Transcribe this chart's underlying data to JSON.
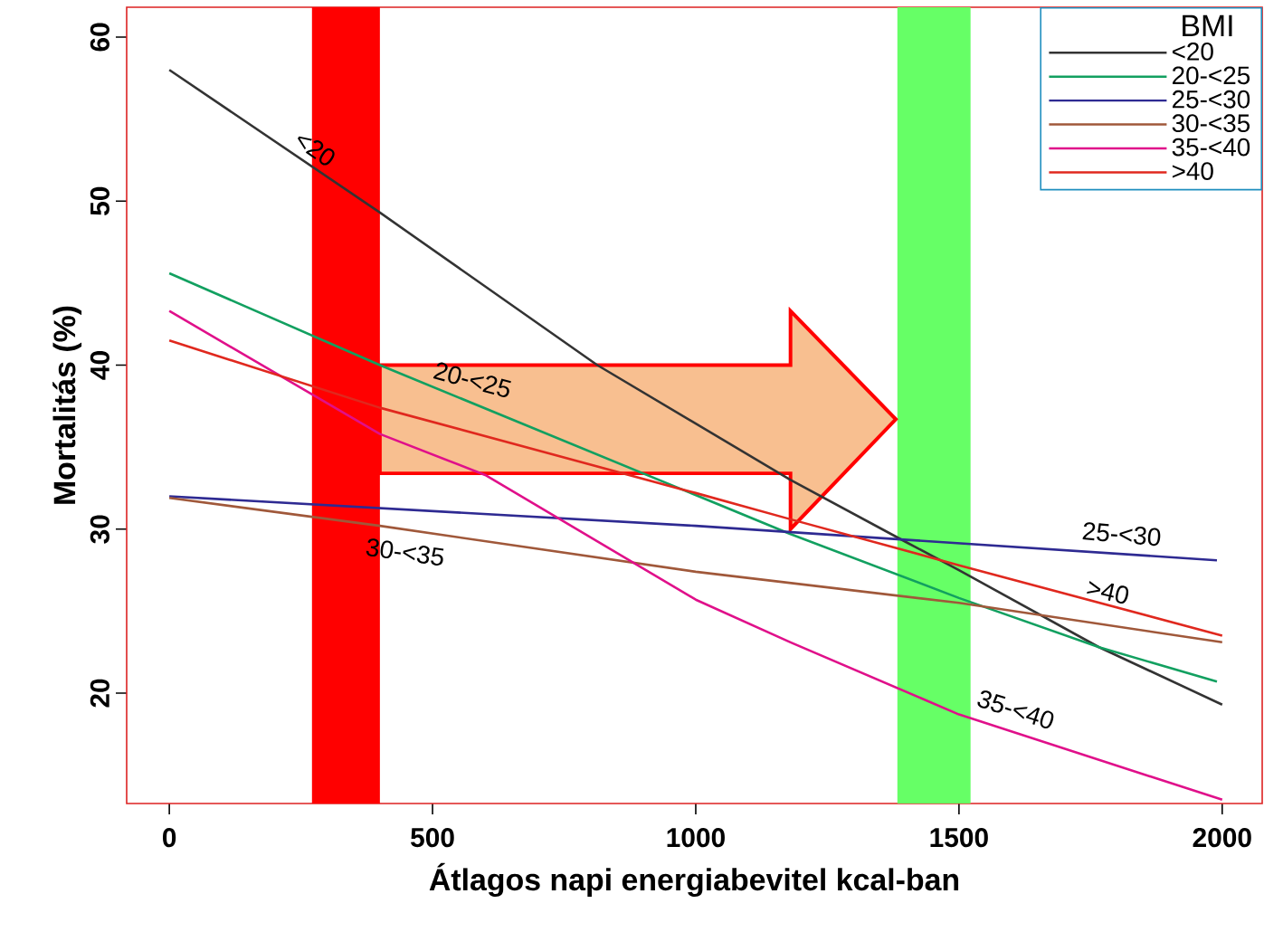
{
  "chart_data": {
    "type": "line",
    "xlabel": "Átlagos napi energiabevitel kcal-ban",
    "ylabel": "Mortalitás (%)",
    "legend_title": "BMI",
    "legend": "top right",
    "xlim": [
      -81,
      2076
    ],
    "ylim": [
      13.27,
      61.82
    ],
    "xticks": [
      0,
      500,
      1000,
      1500,
      2000
    ],
    "yticks": [
      20,
      30,
      40,
      50,
      60
    ],
    "series": [
      {
        "name": "<20",
        "color": "#333333",
        "x": [
          0,
          400,
          813,
          1180,
          1400,
          1500,
          1766,
          2000
        ],
        "values": [
          58.0,
          49.3,
          40.0,
          33.0,
          29.2,
          27.5,
          22.8,
          19.3
        ]
      },
      {
        "name": "20-<25",
        "color": "#12a060",
        "x": [
          0,
          400,
          1180,
          1500,
          1766,
          1990
        ],
        "values": [
          45.6,
          40.0,
          29.7,
          25.8,
          22.8,
          20.7
        ]
      },
      {
        "name": "25-<30",
        "color": "#2e2a92",
        "x": [
          0,
          1000,
          1990
        ],
        "values": [
          32.0,
          30.2,
          28.1
        ]
      },
      {
        "name": "30-<35",
        "color": "#a0583a",
        "x": [
          0,
          400,
          1000,
          1500,
          2000
        ],
        "values": [
          31.9,
          30.2,
          27.4,
          25.5,
          23.1
        ]
      },
      {
        "name": "35-<40",
        "color": "#e0108a",
        "x": [
          0,
          400,
          600,
          1000,
          1180,
          1500,
          2000
        ],
        "values": [
          43.3,
          35.8,
          33.3,
          25.7,
          23.1,
          18.7,
          13.5
        ]
      },
      {
        "name": ">40",
        "color": "#e0281e",
        "x": [
          0,
          400,
          1000,
          1180,
          1500,
          2000
        ],
        "values": [
          41.5,
          37.4,
          32.2,
          30.6,
          27.8,
          23.5
        ]
      }
    ],
    "bands": [
      {
        "axis": "x",
        "from": 271,
        "to": 400,
        "color": "#ff0000"
      },
      {
        "axis": "x",
        "from": 1383,
        "to": 1522,
        "color": "#66ff66"
      }
    ],
    "annotations": [
      "<20",
      "20-<25",
      "25-<30",
      ">40",
      "30-<35",
      "35-<40"
    ]
  }
}
